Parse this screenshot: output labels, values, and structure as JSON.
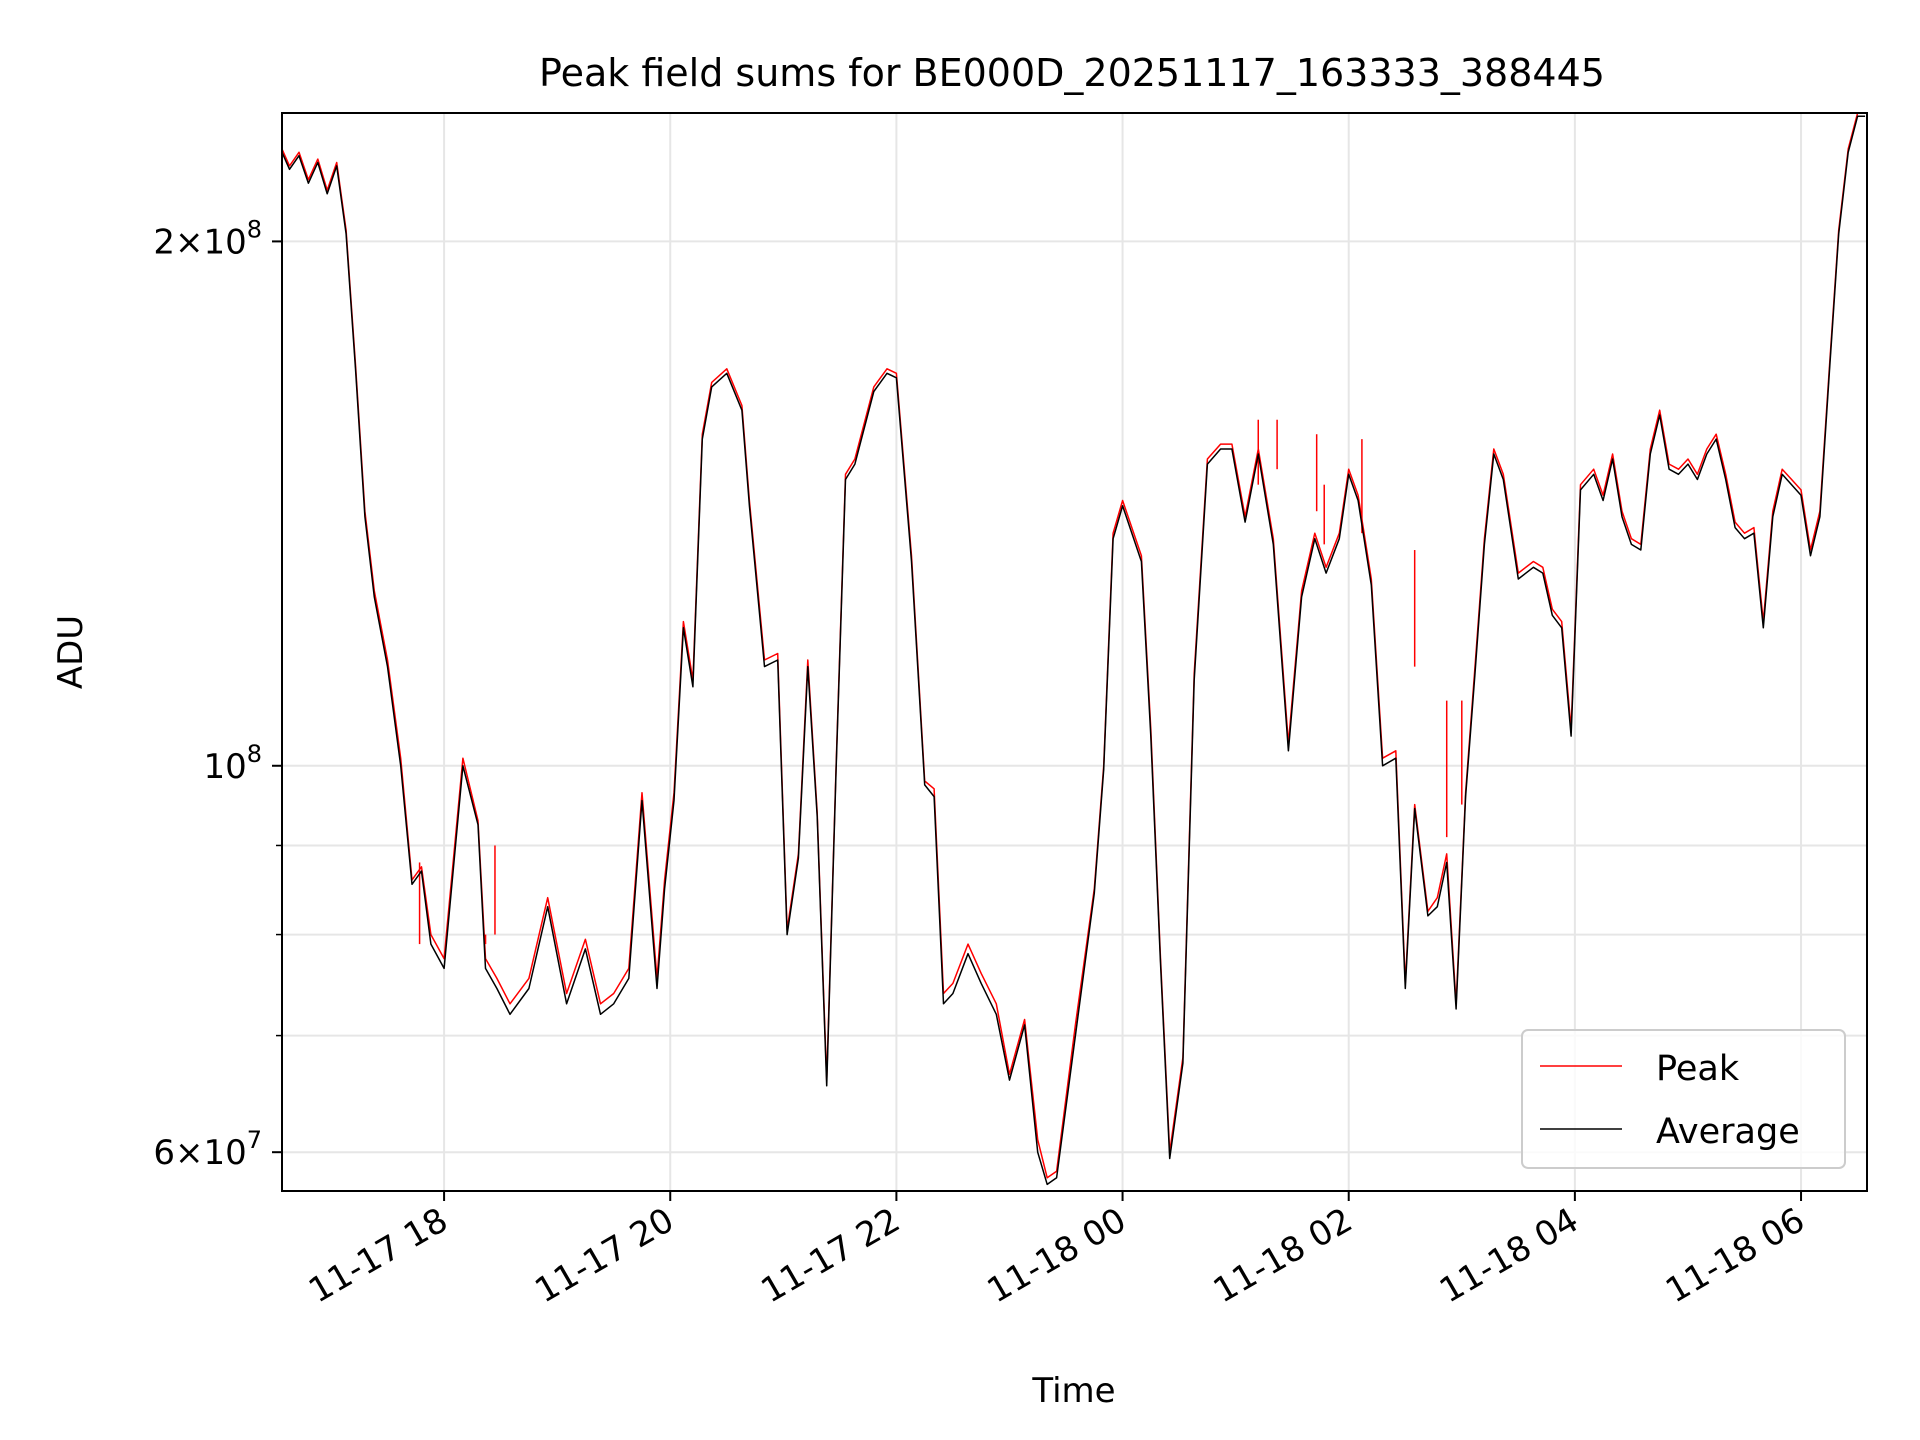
{
  "chart_data": {
    "type": "line",
    "title": "Peak field sums for BE000D_20251117_163333_388445",
    "xlabel": "Time",
    "ylabel": "ADU",
    "yscale": "log",
    "grid": true,
    "legend_position": "bottom-right",
    "xlim": [
      "2025-11-17 16:34",
      "2025-11-18 06:35"
    ],
    "ylim": [
      57000000,
      237000000
    ],
    "x_ticks": [
      {
        "value": "2025-11-17 18:00",
        "label": "11-17 18"
      },
      {
        "value": "2025-11-17 20:00",
        "label": "11-17 20"
      },
      {
        "value": "2025-11-17 22:00",
        "label": "11-17 22"
      },
      {
        "value": "2025-11-18 00:00",
        "label": "11-18 00"
      },
      {
        "value": "2025-11-18 02:00",
        "label": "11-18 02"
      },
      {
        "value": "2025-11-18 04:00",
        "label": "11-18 04"
      },
      {
        "value": "2025-11-18 06:00",
        "label": "11-18 06"
      }
    ],
    "y_major_ticks": [
      {
        "value": 200000000,
        "mantissa": "2",
        "exponent": "8"
      },
      {
        "value": 100000000,
        "mantissa": "",
        "exponent": "8"
      },
      {
        "value": 60000000,
        "mantissa": "6",
        "exponent": "7"
      }
    ],
    "y_minor_ticks": [
      70000000,
      80000000,
      90000000
    ],
    "series": [
      {
        "name": "Peak",
        "color": "#ff0000",
        "x": [
          "2025-11-17 16:34",
          "2025-11-17 16:38",
          "2025-11-17 16:43",
          "2025-11-17 16:48",
          "2025-11-17 16:53",
          "2025-11-17 16:58",
          "2025-11-17 17:03",
          "2025-11-17 17:08",
          "2025-11-17 17:13",
          "2025-11-17 17:18",
          "2025-11-17 17:23",
          "2025-11-17 17:30",
          "2025-11-17 17:37",
          "2025-11-17 17:43",
          "2025-11-17 17:48",
          "2025-11-17 17:53",
          "2025-11-17 18:00",
          "2025-11-17 18:10",
          "2025-11-17 18:18",
          "2025-11-17 18:22",
          "2025-11-17 18:28",
          "2025-11-17 18:35",
          "2025-11-17 18:45",
          "2025-11-17 18:55",
          "2025-11-17 19:05",
          "2025-11-17 19:15",
          "2025-11-17 19:23",
          "2025-11-17 19:30",
          "2025-11-17 19:38",
          "2025-11-17 19:45",
          "2025-11-17 19:53",
          "2025-11-17 19:57",
          "2025-11-17 20:02",
          "2025-11-17 20:07",
          "2025-11-17 20:12",
          "2025-11-17 20:17",
          "2025-11-17 20:22",
          "2025-11-17 20:30",
          "2025-11-17 20:38",
          "2025-11-17 20:42",
          "2025-11-17 20:50",
          "2025-11-17 20:57",
          "2025-11-17 21:02",
          "2025-11-17 21:08",
          "2025-11-17 21:13",
          "2025-11-17 21:18",
          "2025-11-17 21:23",
          "2025-11-17 21:28",
          "2025-11-17 21:33",
          "2025-11-17 21:38",
          "2025-11-17 21:48",
          "2025-11-17 21:55",
          "2025-11-17 22:00",
          "2025-11-17 22:08",
          "2025-11-17 22:15",
          "2025-11-17 22:20",
          "2025-11-17 22:25",
          "2025-11-17 22:30",
          "2025-11-17 22:38",
          "2025-11-17 22:45",
          "2025-11-17 22:53",
          "2025-11-17 23:00",
          "2025-11-17 23:08",
          "2025-11-17 23:15",
          "2025-11-17 23:20",
          "2025-11-17 23:25",
          "2025-11-17 23:35",
          "2025-11-17 23:45",
          "2025-11-17 23:50",
          "2025-11-17 23:55",
          "2025-11-18 00:00",
          "2025-11-18 00:10",
          "2025-11-18 00:15",
          "2025-11-18 00:20",
          "2025-11-18 00:25",
          "2025-11-18 00:32",
          "2025-11-18 00:38",
          "2025-11-18 00:45",
          "2025-11-18 00:52",
          "2025-11-18 00:58",
          "2025-11-18 01:05",
          "2025-11-18 01:12",
          "2025-11-18 01:20",
          "2025-11-18 01:28",
          "2025-11-18 01:35",
          "2025-11-18 01:42",
          "2025-11-18 01:48",
          "2025-11-18 01:55",
          "2025-11-18 02:00",
          "2025-11-18 02:05",
          "2025-11-18 02:12",
          "2025-11-18 02:18",
          "2025-11-18 02:25",
          "2025-11-18 02:30",
          "2025-11-18 02:35",
          "2025-11-18 02:42",
          "2025-11-18 02:47",
          "2025-11-18 02:52",
          "2025-11-18 02:57",
          "2025-11-18 03:02",
          "2025-11-18 03:07",
          "2025-11-18 03:12",
          "2025-11-18 03:17",
          "2025-11-18 03:22",
          "2025-11-18 03:30",
          "2025-11-18 03:38",
          "2025-11-18 03:43",
          "2025-11-18 03:48",
          "2025-11-18 03:53",
          "2025-11-18 03:58",
          "2025-11-18 04:03",
          "2025-11-18 04:10",
          "2025-11-18 04:15",
          "2025-11-18 04:20",
          "2025-11-18 04:25",
          "2025-11-18 04:30",
          "2025-11-18 04:35",
          "2025-11-18 04:40",
          "2025-11-18 04:45",
          "2025-11-18 04:50",
          "2025-11-18 04:55",
          "2025-11-18 05:00",
          "2025-11-18 05:05",
          "2025-11-18 05:10",
          "2025-11-18 05:15",
          "2025-11-18 05:20",
          "2025-11-18 05:25",
          "2025-11-18 05:30",
          "2025-11-18 05:35",
          "2025-11-18 05:40",
          "2025-11-18 05:45",
          "2025-11-18 05:50",
          "2025-11-18 05:55",
          "2025-11-18 06:00",
          "2025-11-18 06:05",
          "2025-11-18 06:10",
          "2025-11-18 06:15",
          "2025-11-18 06:20",
          "2025-11-18 06:25",
          "2025-11-18 06:30",
          "2025-11-18 06:34"
        ],
        "values": [
          226000000,
          221000000,
          225000000,
          217000000,
          223000000,
          214000000,
          222000000,
          203000000,
          170000000,
          140000000,
          126000000,
          115000000,
          101000000,
          86000000,
          87500000,
          80000000,
          77500000,
          101000000,
          93000000,
          77500000,
          75500000,
          73000000,
          75500000,
          84000000,
          74000000,
          79500000,
          73000000,
          74000000,
          76500000,
          96500000,
          75500000,
          86000000,
          96500000,
          121000000,
          112000000,
          155000000,
          166000000,
          169000000,
          161000000,
          142000000,
          115000000,
          116000000,
          80500000,
          89000000,
          115000000,
          94000000,
          66000000,
          100000000,
          147000000,
          150000000,
          165000000,
          169000000,
          168000000,
          132000000,
          98000000,
          97000000,
          74000000,
          75000000,
          79000000,
          76000000,
          73000000,
          66500000,
          71500000,
          61000000,
          58000000,
          58500000,
          71000000,
          85000000,
          100000000,
          136000000,
          142000000,
          132000000,
          105000000,
          78000000,
          60000000,
          68000000,
          113000000,
          150000000,
          153000000,
          153000000,
          139000000,
          152000000,
          135000000,
          103000000,
          126000000,
          136000000,
          130000000,
          136000000,
          148000000,
          143000000,
          128000000,
          101000000,
          102000000,
          75000000,
          95000000,
          82500000,
          84000000,
          89000000,
          73000000,
          96500000,
          114000000,
          135000000,
          152000000,
          147000000,
          129000000,
          131000000,
          130000000,
          123000000,
          121000000,
          105000000,
          145000000,
          148000000,
          143000000,
          151000000,
          140000000,
          135000000,
          134000000,
          152000000,
          160000000,
          149000000,
          148000000,
          150000000,
          147000000,
          152000000,
          155000000,
          147000000,
          138000000,
          136000000,
          137000000,
          121000000,
          140000000,
          148000000,
          146000000,
          144000000,
          133000000,
          140000000,
          169000000,
          203000000,
          226000000,
          237000000,
          237000000
        ]
      },
      {
        "name": "Average",
        "color": "#000000",
        "x": [
          "2025-11-17 16:34",
          "2025-11-17 16:38",
          "2025-11-17 16:43",
          "2025-11-17 16:48",
          "2025-11-17 16:53",
          "2025-11-17 16:58",
          "2025-11-17 17:03",
          "2025-11-17 17:08",
          "2025-11-17 17:13",
          "2025-11-17 17:18",
          "2025-11-17 17:23",
          "2025-11-17 17:30",
          "2025-11-17 17:37",
          "2025-11-17 17:43",
          "2025-11-17 17:48",
          "2025-11-17 17:53",
          "2025-11-17 18:00",
          "2025-11-17 18:10",
          "2025-11-17 18:18",
          "2025-11-17 18:22",
          "2025-11-17 18:28",
          "2025-11-17 18:35",
          "2025-11-17 18:45",
          "2025-11-17 18:55",
          "2025-11-17 19:05",
          "2025-11-17 19:15",
          "2025-11-17 19:23",
          "2025-11-17 19:30",
          "2025-11-17 19:38",
          "2025-11-17 19:45",
          "2025-11-17 19:53",
          "2025-11-17 19:57",
          "2025-11-17 20:02",
          "2025-11-17 20:07",
          "2025-11-17 20:12",
          "2025-11-17 20:17",
          "2025-11-17 20:22",
          "2025-11-17 20:30",
          "2025-11-17 20:38",
          "2025-11-17 20:42",
          "2025-11-17 20:50",
          "2025-11-17 20:57",
          "2025-11-17 21:02",
          "2025-11-17 21:08",
          "2025-11-17 21:13",
          "2025-11-17 21:18",
          "2025-11-17 21:23",
          "2025-11-17 21:28",
          "2025-11-17 21:33",
          "2025-11-17 21:38",
          "2025-11-17 21:48",
          "2025-11-17 21:55",
          "2025-11-17 22:00",
          "2025-11-17 22:08",
          "2025-11-17 22:15",
          "2025-11-17 22:20",
          "2025-11-17 22:25",
          "2025-11-17 22:30",
          "2025-11-17 22:38",
          "2025-11-17 22:45",
          "2025-11-17 22:53",
          "2025-11-17 23:00",
          "2025-11-17 23:08",
          "2025-11-17 23:15",
          "2025-11-17 23:20",
          "2025-11-17 23:25",
          "2025-11-17 23:35",
          "2025-11-17 23:45",
          "2025-11-17 23:50",
          "2025-11-17 23:55",
          "2025-11-18 00:00",
          "2025-11-18 00:10",
          "2025-11-18 00:15",
          "2025-11-18 00:20",
          "2025-11-18 00:25",
          "2025-11-18 00:32",
          "2025-11-18 00:38",
          "2025-11-18 00:45",
          "2025-11-18 00:52",
          "2025-11-18 00:58",
          "2025-11-18 01:05",
          "2025-11-18 01:12",
          "2025-11-18 01:20",
          "2025-11-18 01:28",
          "2025-11-18 01:35",
          "2025-11-18 01:42",
          "2025-11-18 01:48",
          "2025-11-18 01:55",
          "2025-11-18 02:00",
          "2025-11-18 02:05",
          "2025-11-18 02:12",
          "2025-11-18 02:18",
          "2025-11-18 02:25",
          "2025-11-18 02:30",
          "2025-11-18 02:35",
          "2025-11-18 02:42",
          "2025-11-18 02:47",
          "2025-11-18 02:52",
          "2025-11-18 02:57",
          "2025-11-18 03:02",
          "2025-11-18 03:07",
          "2025-11-18 03:12",
          "2025-11-18 03:17",
          "2025-11-18 03:22",
          "2025-11-18 03:30",
          "2025-11-18 03:38",
          "2025-11-18 03:43",
          "2025-11-18 03:48",
          "2025-11-18 03:53",
          "2025-11-18 03:58",
          "2025-11-18 04:03",
          "2025-11-18 04:10",
          "2025-11-18 04:15",
          "2025-11-18 04:20",
          "2025-11-18 04:25",
          "2025-11-18 04:30",
          "2025-11-18 04:35",
          "2025-11-18 04:40",
          "2025-11-18 04:45",
          "2025-11-18 04:50",
          "2025-11-18 04:55",
          "2025-11-18 05:00",
          "2025-11-18 05:05",
          "2025-11-18 05:10",
          "2025-11-18 05:15",
          "2025-11-18 05:20",
          "2025-11-18 05:25",
          "2025-11-18 05:30",
          "2025-11-18 05:35",
          "2025-11-18 05:40",
          "2025-11-18 05:45",
          "2025-11-18 05:50",
          "2025-11-18 05:55",
          "2025-11-18 06:00",
          "2025-11-18 06:05",
          "2025-11-18 06:10",
          "2025-11-18 06:15",
          "2025-11-18 06:20",
          "2025-11-18 06:25",
          "2025-11-18 06:30",
          "2025-11-18 06:34"
        ],
        "values": [
          225000000,
          220000000,
          224000000,
          216000000,
          222000000,
          213000000,
          221000000,
          202000000,
          169000000,
          139000000,
          125000000,
          114000000,
          100000000,
          85500000,
          87000000,
          79000000,
          76500000,
          100000000,
          92500000,
          76500000,
          74500000,
          72000000,
          74500000,
          83000000,
          73000000,
          78500000,
          72000000,
          73000000,
          75500000,
          95500000,
          74500000,
          85000000,
          95500000,
          120000000,
          111000000,
          154000000,
          165000000,
          168000000,
          160000000,
          141000000,
          114000000,
          115000000,
          80000000,
          88500000,
          114000000,
          93500000,
          65500000,
          99500000,
          146000000,
          149000000,
          164000000,
          168000000,
          167000000,
          131000000,
          97500000,
          96000000,
          73000000,
          74000000,
          78000000,
          75000000,
          72000000,
          66000000,
          71000000,
          60000000,
          57500000,
          58000000,
          70000000,
          84500000,
          99500000,
          135000000,
          141000000,
          131000000,
          104000000,
          77500000,
          59500000,
          67500000,
          112000000,
          149000000,
          152000000,
          152000000,
          138000000,
          151000000,
          134000000,
          102000000,
          125000000,
          135000000,
          129000000,
          135000000,
          147000000,
          142000000,
          127000000,
          100000000,
          101000000,
          74500000,
          94500000,
          82000000,
          83000000,
          88000000,
          72500000,
          96000000,
          113000000,
          134000000,
          151000000,
          146000000,
          128000000,
          130000000,
          129000000,
          122000000,
          120000000,
          104000000,
          144000000,
          147000000,
          142000000,
          150000000,
          139000000,
          134000000,
          133000000,
          151000000,
          159000000,
          148000000,
          147000000,
          149000000,
          146000000,
          151000000,
          154000000,
          146000000,
          137000000,
          135000000,
          136000000,
          120000000,
          139000000,
          147000000,
          145000000,
          143000000,
          132000000,
          139000000,
          168000000,
          202000000,
          225000000,
          236000000,
          236000000
        ]
      }
    ],
    "peak_spikes": [
      {
        "x": "2025-11-17 17:47",
        "from": 79000000,
        "to": 88000000
      },
      {
        "x": "2025-11-17 18:22",
        "from": 79000000,
        "to": 80000000
      },
      {
        "x": "2025-11-17 18:27",
        "from": 80000000,
        "to": 90000000
      },
      {
        "x": "2025-11-18 01:12",
        "from": 145000000,
        "to": 158000000
      },
      {
        "x": "2025-11-18 01:22",
        "from": 148000000,
        "to": 158000000
      },
      {
        "x": "2025-11-18 01:43",
        "from": 140000000,
        "to": 155000000
      },
      {
        "x": "2025-11-18 01:47",
        "from": 134000000,
        "to": 145000000
      },
      {
        "x": "2025-11-18 02:07",
        "from": 136000000,
        "to": 154000000
      },
      {
        "x": "2025-11-18 02:35",
        "from": 114000000,
        "to": 133000000
      },
      {
        "x": "2025-11-18 02:52",
        "from": 91000000,
        "to": 109000000
      },
      {
        "x": "2025-11-18 03:00",
        "from": 95000000,
        "to": 109000000
      }
    ]
  }
}
